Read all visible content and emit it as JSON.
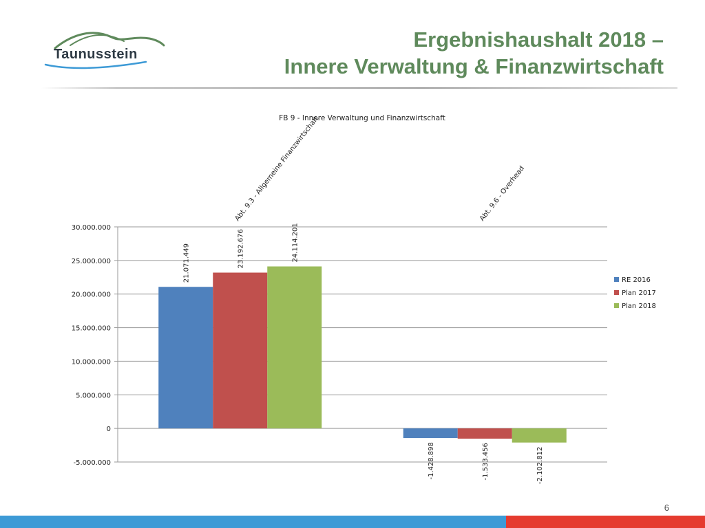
{
  "slide": {
    "logo_text": "Taunusstein",
    "title_line1": "Ergebnishaushalt 2018 –",
    "title_line2": "Innere Verwaltung & Finanzwirtschaft",
    "page_number": "6"
  },
  "colors": {
    "title_green": "#5f8a5c",
    "footer_blue": "#3d9ad6",
    "footer_red": "#e53b2f",
    "series": [
      "#4f81bd",
      "#c0504d",
      "#9bbb59"
    ]
  },
  "chart_data": {
    "type": "bar",
    "title": "FB 9 - Innere Verwaltung und Finanzwirtschaft",
    "categories": [
      "Abt. 9.3 - Allgemeine Finanzwirtschaft",
      "Abt. 9.6 - Overhead"
    ],
    "series": [
      {
        "name": "RE 2016",
        "values": [
          21071449,
          -1428898
        ],
        "labels": [
          "21.071.449",
          "-1.428.898"
        ]
      },
      {
        "name": "Plan 2017",
        "values": [
          23192676,
          -1533456
        ],
        "labels": [
          "23.192.676",
          "-1.533.456"
        ]
      },
      {
        "name": "Plan 2018",
        "values": [
          24114201,
          -2102812
        ],
        "labels": [
          "24.114.201",
          "-2.102.812"
        ]
      }
    ],
    "ylim": [
      -5000000,
      30000000
    ],
    "yticks": [
      30000000,
      25000000,
      20000000,
      15000000,
      10000000,
      5000000,
      0,
      -5000000
    ],
    "ytick_labels": [
      "30.000.000",
      "25.000.000",
      "20.000.000",
      "15.000.000",
      "10.000.000",
      "5.000.000",
      "0",
      "-5.000.000"
    ],
    "xlabel": "",
    "ylabel": "",
    "grid": true,
    "legend": "right"
  }
}
